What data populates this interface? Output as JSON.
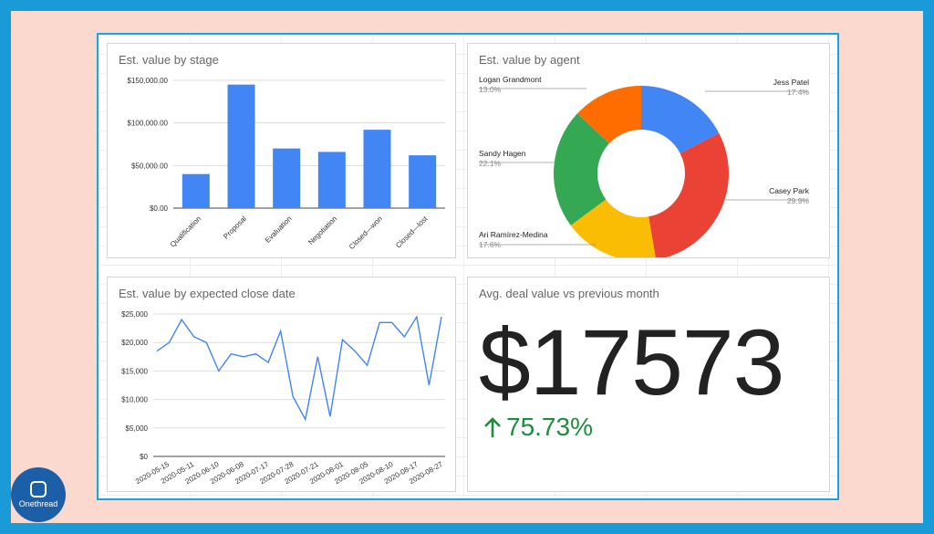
{
  "watermark": {
    "brand": "Onethread"
  },
  "chart_data": [
    {
      "type": "bar",
      "title": "Est. value by stage",
      "categories": [
        "Qualification",
        "Proposal",
        "Evaluation",
        "Negotiation",
        "Closed—won",
        "Closed—lost"
      ],
      "values": [
        40000,
        145000,
        70000,
        66000,
        92000,
        62000
      ],
      "ylim": [
        0,
        150000
      ],
      "yticks": [
        "$0.00",
        "$50,000.00",
        "$100,000.00",
        "$150,000.00"
      ],
      "grid": true,
      "color": "#4285f4"
    },
    {
      "type": "pie",
      "donut": true,
      "title": "Est. value by agent",
      "slices": [
        {
          "name": "Jess Patel",
          "pct_label": "17.4%",
          "value": 17.4,
          "color": "#4285f4"
        },
        {
          "name": "Casey Park",
          "pct_label": "29.9%",
          "value": 29.9,
          "color": "#ea4335"
        },
        {
          "name": "Ari Ramírez-Medina",
          "pct_label": "17.6%",
          "value": 17.6,
          "color": "#fbbc04"
        },
        {
          "name": "Sandy Hagen",
          "pct_label": "22.1%",
          "value": 22.1,
          "color": "#34a853"
        },
        {
          "name": "Logan Grandmont",
          "pct_label": "13.0%",
          "value": 13.0,
          "color": "#ff6d01"
        }
      ]
    },
    {
      "type": "line",
      "title": "Est. value by expected close date",
      "x_ticks": [
        "2020-05-15",
        "2020-05-11",
        "2020-06-10",
        "2020-06-08",
        "2020-07-17",
        "2020-07-28",
        "2020-07-21",
        "2020-08-01",
        "2020-08-05",
        "2020-08-10",
        "2020-08-17",
        "2020-08-27"
      ],
      "values": [
        18500,
        20000,
        24000,
        21000,
        20000,
        15000,
        18000,
        17500,
        18000,
        16500,
        22000,
        10500,
        6500,
        17500,
        7000,
        20500,
        18500,
        16000,
        23500,
        23500,
        21000,
        24500,
        12500,
        24500
      ],
      "ylim": [
        0,
        25000
      ],
      "yticks": [
        "$0",
        "$5,000",
        "$10,000",
        "$15,000",
        "$20,000",
        "$25,000"
      ],
      "grid": true,
      "color": "#4285f4"
    }
  ],
  "scorecard": {
    "title": "Avg. deal value vs previous month",
    "value": "$17573",
    "delta": "75.73%",
    "delta_color": "#1e8e3e"
  }
}
